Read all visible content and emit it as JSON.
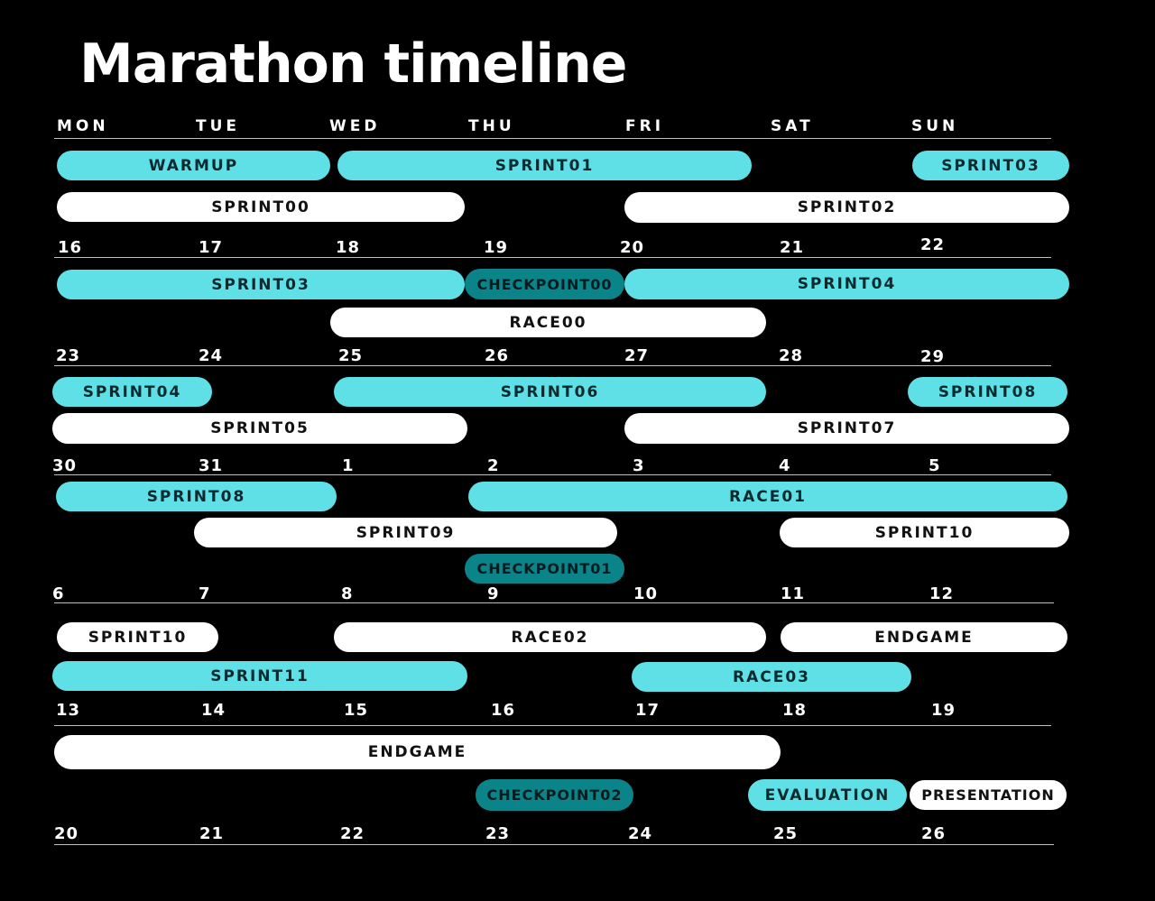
{
  "title": "Marathon timeline",
  "colors": {
    "background": "#000000",
    "sprint": "#5ee0e6",
    "alt": "#ffffff",
    "checkpoint": "#0b8489"
  },
  "days": [
    "MON",
    "TUE",
    "WED",
    "THU",
    "FRI",
    "SAT",
    "SUN"
  ],
  "week_dates": [
    [
      "16",
      "17",
      "18",
      "19",
      "20",
      "21",
      "22"
    ],
    [
      "23",
      "24",
      "25",
      "26",
      "27",
      "28",
      "29"
    ],
    [
      "30",
      "31",
      "1",
      "2",
      "3",
      "4",
      "5"
    ],
    [
      "6",
      "7",
      "8",
      "9",
      "10",
      "11",
      "12"
    ],
    [
      "13",
      "14",
      "15",
      "16",
      "17",
      "18",
      "19"
    ],
    [
      "20",
      "21",
      "22",
      "23",
      "24",
      "25",
      "26"
    ]
  ],
  "events": [
    "WARMUP",
    "SPRINT01",
    "SPRINT03",
    "SPRINT00",
    "SPRINT02",
    "SPRINT03",
    "CHECKPOINT00",
    "SPRINT04",
    "RACE00",
    "SPRINT04",
    "SPRINT06",
    "SPRINT08",
    "SPRINT05",
    "SPRINT07",
    "SPRINT08",
    "RACE01",
    "SPRINT09",
    "SPRINT10",
    "CHECKPOINT01",
    "SPRINT10",
    "RACE02",
    "ENDGAME",
    "SPRINT11",
    "RACE03",
    "ENDGAME",
    "CHECKPOINT02",
    "EVALUATION",
    "PRESENTATION"
  ]
}
